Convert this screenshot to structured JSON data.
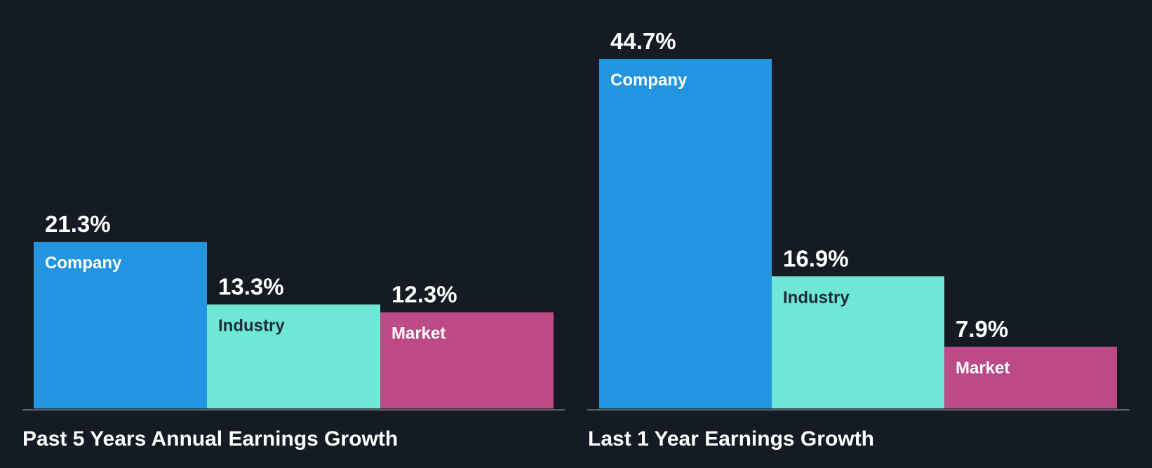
{
  "chart_data": [
    {
      "type": "bar",
      "title": "Past 5 Years Annual Earnings Growth",
      "categories": [
        "Company",
        "Industry",
        "Market"
      ],
      "values": [
        21.3,
        13.3,
        12.3
      ],
      "value_labels": [
        "21.3%",
        "13.3%",
        "12.3%"
      ],
      "unit": "%",
      "ylim": [
        0,
        44.7
      ],
      "xlabel": "",
      "ylabel": "",
      "grid": false
    },
    {
      "type": "bar",
      "title": "Last 1 Year Earnings Growth",
      "categories": [
        "Company",
        "Industry",
        "Market"
      ],
      "values": [
        44.7,
        16.9,
        7.9
      ],
      "value_labels": [
        "44.7%",
        "16.9%",
        "7.9%"
      ],
      "unit": "%",
      "ylim": [
        0,
        44.7
      ],
      "xlabel": "",
      "ylabel": "",
      "grid": false
    }
  ],
  "colors": {
    "background": "#151b24",
    "axis": "#5b6068",
    "bar_colors": [
      "#2394e0",
      "#6fe7d6",
      "#bb4a86"
    ],
    "bar_label_colors": [
      "#ffffff",
      "#1d2a36",
      "#ffffff"
    ],
    "value_label_color": "#ffffff",
    "title_color": "#ffffff"
  }
}
